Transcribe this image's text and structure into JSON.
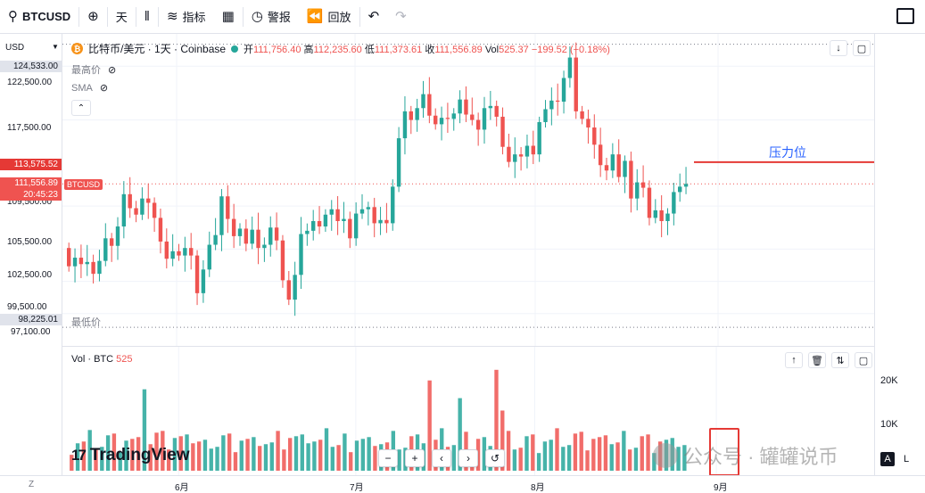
{
  "toolbar": {
    "symbol": "BTCUSD",
    "interval": "天",
    "indicators": "指标",
    "alerts": "警报",
    "replay": "回放"
  },
  "legend": {
    "title": "比特币/美元 · 1天 · Coinbase",
    "open_label": "开",
    "open": "111,756.40",
    "high_label": "高",
    "high": "112,235.60",
    "low_label": "低",
    "low": "111,373.61",
    "close_label": "收",
    "close": "111,556.89",
    "vol_label": "Vol",
    "vol": "525.37",
    "change": "−199.52 (−0.18%)"
  },
  "indicators": {
    "high_label": "最高价",
    "sma_label": "SMA"
  },
  "axis": {
    "currency": "USD",
    "ticks": [
      "122,500.00",
      "117,500.00",
      "109,500.00",
      "105,500.00",
      "102,500.00",
      "99,500.00",
      "97,100.00"
    ],
    "max_tag": "124,533.00",
    "min_tag": "98,225.01",
    "resist_tag": "113,575.52",
    "price_tag": "111,556.89",
    "countdown": "20:45:23",
    "symbol_tag": "BTCUSD",
    "low_label": "最低价"
  },
  "annotation": {
    "resistance": "压力位"
  },
  "volume": {
    "legend_name": "Vol · BTC",
    "legend_value": "525",
    "ticks": [
      "20K",
      "10K"
    ]
  },
  "time_axis": {
    "labels": [
      "6月",
      "7月",
      "8月",
      "9月"
    ],
    "z": "Z"
  },
  "branding": {
    "logo": "TradingView",
    "watermark": "公众号 · 罐罐说币"
  },
  "controls": {
    "auto": "A",
    "log": "L"
  },
  "colors": {
    "up": "#26a69a",
    "down": "#ef5350",
    "resistance": "#e53935",
    "annotation": "#2962ff"
  },
  "chart_data": {
    "type": "candlestick",
    "symbol": "BTCUSD",
    "ylim": [
      96500,
      125500
    ],
    "x_labels": [
      "6月",
      "7月",
      "8月",
      "9月"
    ],
    "hlines": [
      {
        "value": 124533.0
      },
      {
        "value": 98225.01
      },
      {
        "value": 113575.52
      },
      {
        "value": 111556.89
      }
    ],
    "closes": [
      103900,
      104700,
      104100,
      104300,
      103200,
      104400,
      106500,
      105800,
      107600,
      110600,
      109300,
      108700,
      110200,
      109800,
      108400,
      106200,
      104600,
      105300,
      104900,
      105600,
      104900,
      101400,
      103600,
      105900,
      106800,
      110400,
      108300,
      106700,
      107400,
      106000,
      107300,
      105600,
      105900,
      107500,
      106300,
      102600,
      100800,
      103100,
      106900,
      107200,
      108100,
      107600,
      108700,
      109200,
      108100,
      108300,
      106500,
      108800,
      109200,
      109400,
      107900,
      108200,
      107900,
      111300,
      115800,
      118300,
      117500,
      118600,
      119900,
      117900,
      117100,
      117700,
      117600,
      118100,
      119400,
      118000,
      117500,
      116600,
      118600,
      118800,
      117800,
      115000,
      113600,
      114300,
      114100,
      115100,
      114300,
      117300,
      118500,
      119300,
      119200,
      121400,
      123300,
      118300,
      117600,
      116800,
      115200,
      113300,
      112800,
      114300,
      112200,
      113700,
      110200,
      111700,
      111200,
      108400,
      109100,
      108100,
      108800,
      110800,
      111300,
      111556
    ]
  }
}
